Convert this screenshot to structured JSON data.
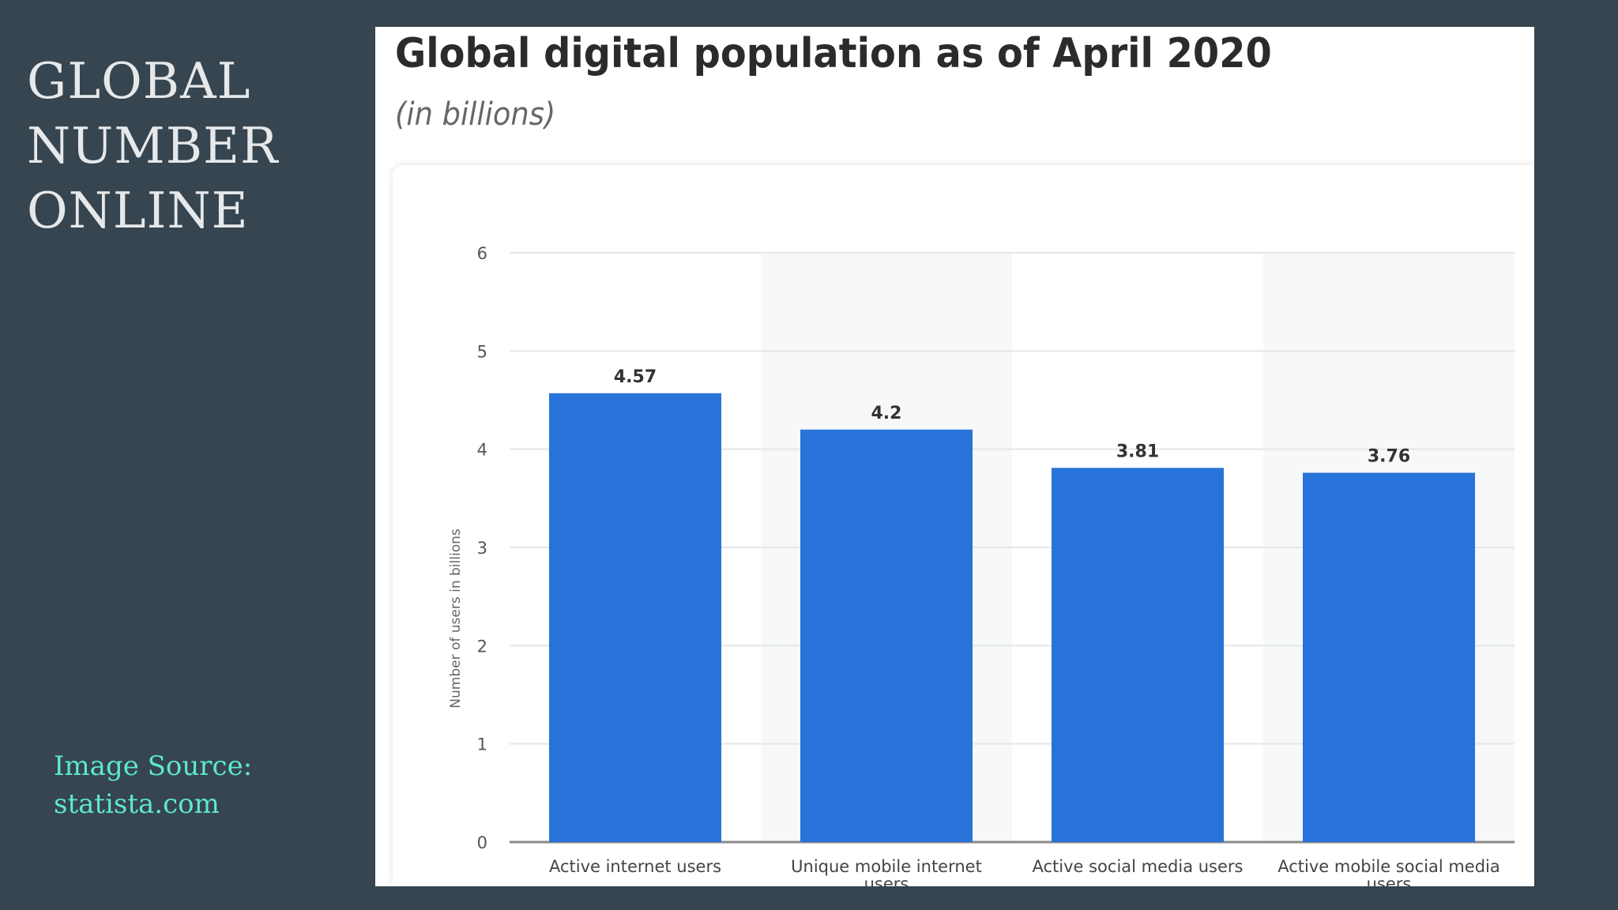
{
  "slide": {
    "title_lines": [
      "GLOBAL",
      "NUMBER",
      "ONLINE"
    ],
    "source_lines": [
      "Image Source:",
      "statista.com"
    ]
  },
  "colors": {
    "background": "#36454f",
    "bar": "#2873d9",
    "source_text": "#5de8cf"
  },
  "chart_data": {
    "type": "bar",
    "title": "Global digital population as of April 2020",
    "subtitle": "(in billions)",
    "ylabel": "Number of users in billions",
    "xlabel": "",
    "ylim": [
      0,
      6
    ],
    "yticks": [
      0,
      1,
      2,
      3,
      4,
      5,
      6
    ],
    "grid": true,
    "categories": [
      [
        "Active internet users"
      ],
      [
        "Unique mobile internet",
        "users"
      ],
      [
        "Active social media users"
      ],
      [
        "Active mobile social media",
        "users"
      ]
    ],
    "values": [
      4.57,
      4.2,
      3.81,
      3.76
    ],
    "value_labels": [
      "4.57",
      "4.2",
      "3.81",
      "3.76"
    ]
  }
}
